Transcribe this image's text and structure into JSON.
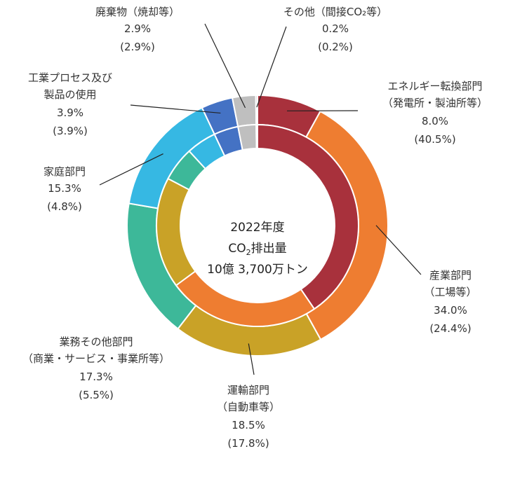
{
  "chart_data": {
    "type": "pie",
    "variant": "double-donut",
    "center_text": {
      "line1": "2022年度",
      "line2_prefix": "CO",
      "line2_sub": "2",
      "line2_suffix": "排出量",
      "line3": "10億 3,700万トン"
    },
    "rings": [
      "outer",
      "inner"
    ],
    "categories": [
      {
        "name": "エネルギー転換部門",
        "sub": "（発電所・製油所等）",
        "outer": "8.0%",
        "inner": "(40.5%)",
        "outer_value": 8.0,
        "inner_value": 40.5,
        "color": "#a8313c"
      },
      {
        "name": "産業部門",
        "sub": "（工場等）",
        "outer": "34.0%",
        "inner": "(24.4%)",
        "outer_value": 34.0,
        "inner_value": 24.4,
        "color": "#ee7d31"
      },
      {
        "name": "運輸部門",
        "sub": "（自動車等）",
        "outer": "18.5%",
        "inner": "(17.8%)",
        "outer_value": 18.5,
        "inner_value": 17.8,
        "color": "#c9a227"
      },
      {
        "name": "業務その他部門",
        "sub": "（商業・サービス・事業所等）",
        "outer": "17.3%",
        "inner": "(5.5%)",
        "outer_value": 17.3,
        "inner_value": 5.5,
        "color": "#3db899"
      },
      {
        "name": "家庭部門",
        "sub": "",
        "outer": "15.3%",
        "inner": "(4.8%)",
        "outer_value": 15.3,
        "inner_value": 4.8,
        "color": "#36b8e3"
      },
      {
        "name": "工業プロセス及び",
        "sub": "製品の使用",
        "outer": "3.9%",
        "inner": "(3.9%)",
        "outer_value": 3.9,
        "inner_value": 3.9,
        "color": "#4472c4"
      },
      {
        "name": "廃棄物（焼却等）",
        "sub": "",
        "outer": "2.9%",
        "inner": "(2.9%)",
        "outer_value": 2.9,
        "inner_value": 2.9,
        "color": "#bfbfbf"
      },
      {
        "name": "その他（間接CO₂等）",
        "sub": "",
        "outer": "0.2%",
        "inner": "(0.2%)",
        "outer_value": 0.2,
        "inner_value": 0.2,
        "color": "#a5a5a5"
      }
    ]
  }
}
